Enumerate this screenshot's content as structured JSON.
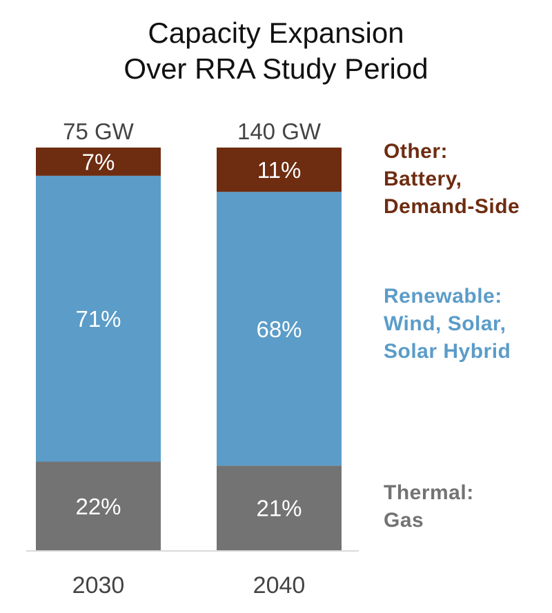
{
  "chart_data": {
    "type": "bar",
    "stacked": true,
    "title": [
      "Capacity Expansion",
      "Over RRA Study Period"
    ],
    "categories": [
      "2030",
      "2040"
    ],
    "totals": [
      "75 GW",
      "140 GW"
    ],
    "unit": "%",
    "series": [
      {
        "name": "Thermal: Gas",
        "label_lines": [
          "Thermal:",
          "Gas"
        ],
        "color": "#737373",
        "values": [
          22,
          21
        ]
      },
      {
        "name": "Renewable: Wind, Solar, Solar Hybrid",
        "label_lines": [
          "Renewable:",
          "Wind, Solar,",
          "Solar Hybrid"
        ],
        "color": "#5b9cc8",
        "values": [
          71,
          68
        ]
      },
      {
        "name": "Other: Battery, Demand-Side",
        "label_lines": [
          "Other:",
          "Battery,",
          "Demand-Side"
        ],
        "color": "#6e2c11",
        "values": [
          7,
          11
        ]
      }
    ],
    "ylim": [
      0,
      100
    ],
    "grid": false,
    "legend": "right",
    "axis_color": "#d9d9d9",
    "text_color": "#444444"
  }
}
